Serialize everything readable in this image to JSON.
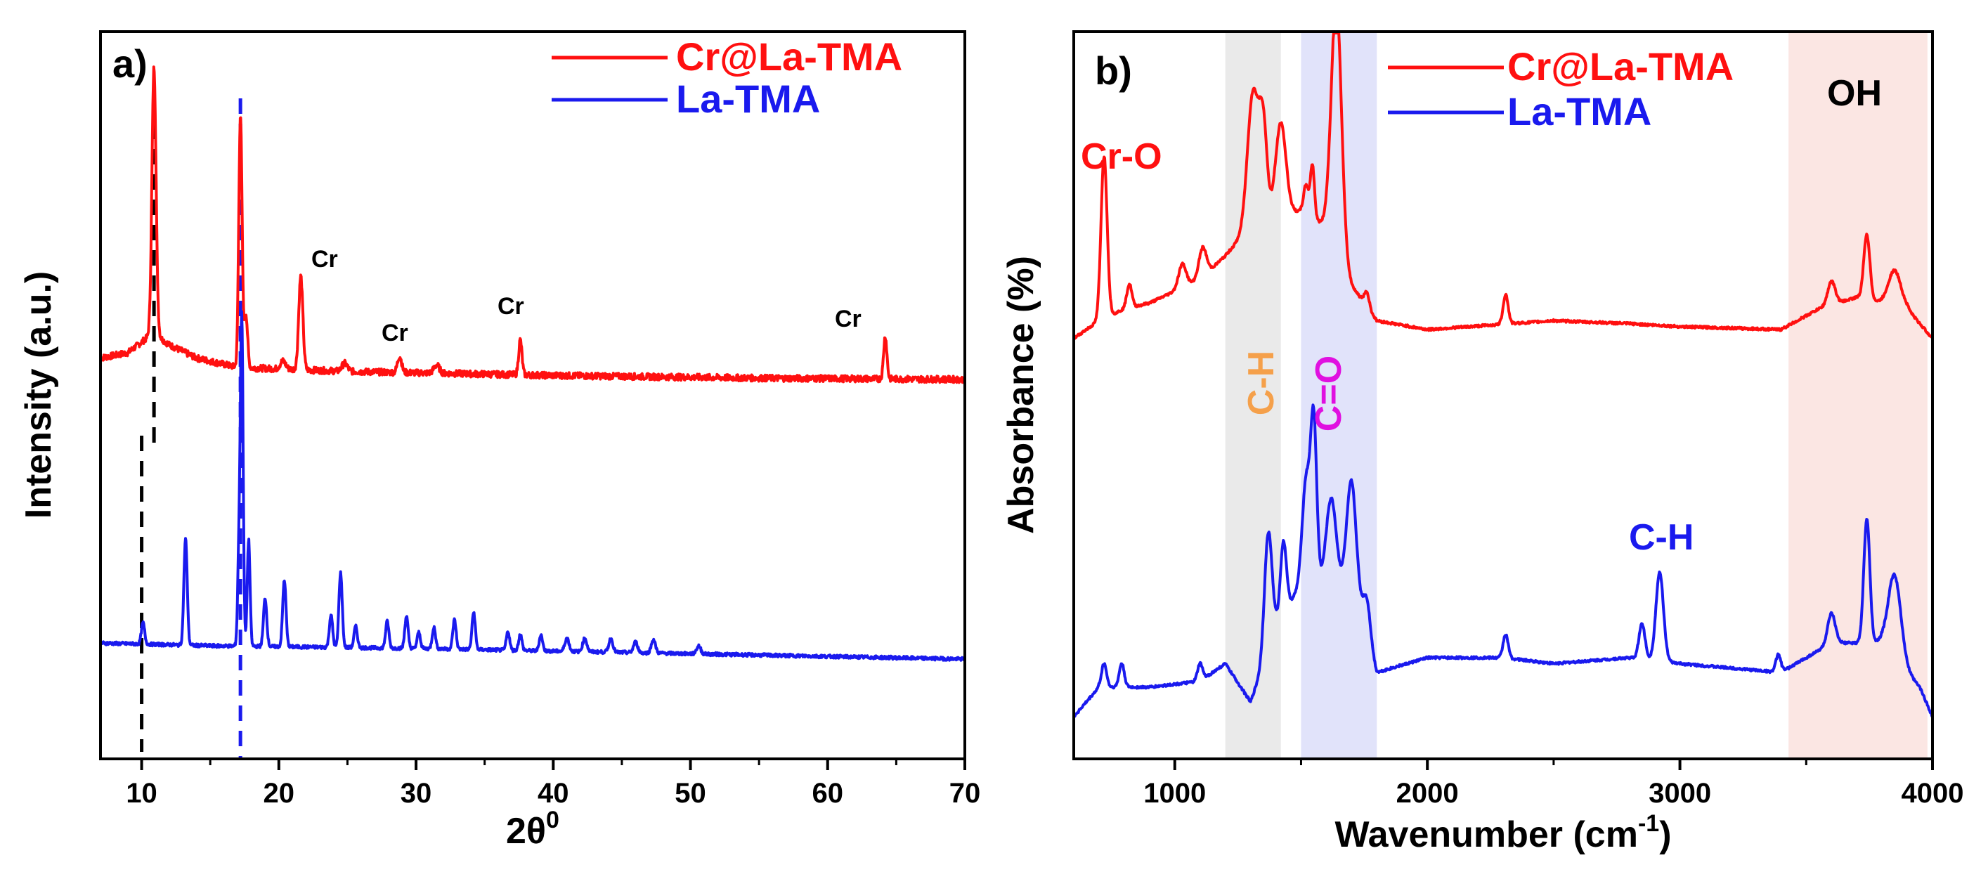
{
  "chart_data": [
    {
      "type": "line",
      "panel_label": "a)",
      "xlabel": "2θ",
      "xlabel_superscript": "0",
      "ylabel": "Intensity (a.u.)",
      "xlim": [
        7,
        70
      ],
      "xticks": [
        "10",
        "20",
        "30",
        "40",
        "50",
        "60",
        "70"
      ],
      "legend_position": "top-right",
      "series": [
        {
          "name": "Cr@La-TMA",
          "color": "#ff1010",
          "baseline_offset": 1.0,
          "background": [
            [
              7,
              0.08
            ],
            [
              9,
              0.1
            ],
            [
              10.5,
              0.16
            ],
            [
              11,
              0.17
            ],
            [
              12,
              0.13
            ],
            [
              14,
              0.08
            ],
            [
              17,
              0.045
            ],
            [
              25,
              0.03
            ],
            [
              40,
              0.015
            ],
            [
              55,
              0.005
            ],
            [
              70,
              0.0
            ]
          ],
          "peaks": [
            [
              10.9,
              1.0,
              0.15
            ],
            [
              17.2,
              0.95,
              0.12
            ],
            [
              17.6,
              0.2,
              0.12
            ],
            [
              21.6,
              0.35,
              0.15
            ],
            [
              28.8,
              0.06,
              0.15
            ],
            [
              37.6,
              0.13,
              0.12
            ],
            [
              64.2,
              0.16,
              0.12
            ],
            [
              20.3,
              0.03,
              0.2
            ],
            [
              24.8,
              0.03,
              0.2
            ],
            [
              31.5,
              0.03,
              0.2
            ]
          ]
        },
        {
          "name": "La-TMA",
          "color": "#1a1aee",
          "baseline_offset": 0.0,
          "background": [
            [
              7,
              0.06
            ],
            [
              15,
              0.05
            ],
            [
              30,
              0.04
            ],
            [
              50,
              0.02
            ],
            [
              70,
              0.0
            ]
          ],
          "peaks": [
            [
              10.1,
              0.08,
              0.12
            ],
            [
              13.2,
              0.4,
              0.12
            ],
            [
              17.1,
              0.35,
              0.1
            ],
            [
              17.3,
              1.2,
              0.1
            ],
            [
              17.8,
              0.4,
              0.1
            ],
            [
              19.0,
              0.18,
              0.12
            ],
            [
              20.4,
              0.25,
              0.12
            ],
            [
              23.8,
              0.12,
              0.12
            ],
            [
              24.5,
              0.28,
              0.12
            ],
            [
              25.6,
              0.08,
              0.12
            ],
            [
              27.9,
              0.1,
              0.12
            ],
            [
              29.3,
              0.12,
              0.12
            ],
            [
              30.2,
              0.06,
              0.12
            ],
            [
              31.3,
              0.08,
              0.12
            ],
            [
              32.8,
              0.11,
              0.12
            ],
            [
              34.2,
              0.14,
              0.12
            ],
            [
              36.7,
              0.07,
              0.12
            ],
            [
              37.6,
              0.06,
              0.12
            ],
            [
              39.1,
              0.06,
              0.12
            ],
            [
              41.0,
              0.05,
              0.15
            ],
            [
              42.3,
              0.05,
              0.15
            ],
            [
              44.2,
              0.05,
              0.15
            ],
            [
              46.0,
              0.04,
              0.15
            ],
            [
              47.3,
              0.05,
              0.15
            ],
            [
              50.6,
              0.03,
              0.15
            ]
          ]
        }
      ],
      "reference_lines": [
        {
          "x": 10.0,
          "color": "#000000"
        },
        {
          "x": 10.9,
          "color": "#000000"
        },
        {
          "x": 17.2,
          "color": "#1a1aee"
        }
      ],
      "annotations": [
        {
          "text": "Cr",
          "x": 21.6
        },
        {
          "text": "Cr",
          "x": 28.8
        },
        {
          "text": "Cr",
          "x": 37.6
        },
        {
          "text": "Cr",
          "x": 64.2
        }
      ]
    },
    {
      "type": "line",
      "panel_label": "b)",
      "xlabel": "Wavenumber (cm",
      "xlabel_superscript": "-1",
      "xlabel_suffix": ")",
      "ylabel": "Absorbance (%)",
      "xlim": [
        600,
        4000
      ],
      "xticks": [
        "1000",
        "2000",
        "3000",
        "4000"
      ],
      "legend_position": "top-center",
      "series": [
        {
          "name": "Cr@La-TMA",
          "color": "#ff1010",
          "baseline_offset": 1.0,
          "background": [
            [
              600,
              0.02
            ],
            [
              700,
              0.08
            ],
            [
              800,
              0.12
            ],
            [
              900,
              0.14
            ],
            [
              1000,
              0.18
            ],
            [
              1100,
              0.22
            ],
            [
              1200,
              0.3
            ],
            [
              1300,
              0.4
            ],
            [
              1400,
              0.45
            ],
            [
              1500,
              0.45
            ],
            [
              1600,
              0.4
            ],
            [
              1700,
              0.2
            ],
            [
              1800,
              0.08
            ],
            [
              2000,
              0.05
            ],
            [
              2500,
              0.08
            ],
            [
              2800,
              0.07
            ],
            [
              3000,
              0.06
            ],
            [
              3400,
              0.05
            ],
            [
              3550,
              0.12
            ],
            [
              3700,
              0.16
            ],
            [
              3900,
              0.12
            ],
            [
              4000,
              0.02
            ]
          ],
          "peaks": [
            [
              720,
              0.55,
              12
            ],
            [
              820,
              0.08,
              10
            ],
            [
              1030,
              0.08,
              15
            ],
            [
              1110,
              0.1,
              15
            ],
            [
              1310,
              0.45,
              22
            ],
            [
              1350,
              0.3,
              15
            ],
            [
              1420,
              0.3,
              20
            ],
            [
              1520,
              0.1,
              10
            ],
            [
              1545,
              0.18,
              8
            ],
            [
              1640,
              0.85,
              20
            ],
            [
              1760,
              0.05,
              10
            ],
            [
              2310,
              0.1,
              10
            ],
            [
              3600,
              0.08,
              15
            ],
            [
              3740,
              0.22,
              12
            ],
            [
              3850,
              0.12,
              25
            ]
          ]
        },
        {
          "name": "La-TMA",
          "color": "#1a1aee",
          "baseline_offset": 0.0,
          "background": [
            [
              600,
              0.0
            ],
            [
              700,
              0.1
            ],
            [
              900,
              0.1
            ],
            [
              1100,
              0.12
            ],
            [
              1200,
              0.18
            ],
            [
              1300,
              0.05
            ],
            [
              1400,
              0.3
            ],
            [
              1500,
              0.45
            ],
            [
              1600,
              0.45
            ],
            [
              1700,
              0.4
            ],
            [
              1800,
              0.15
            ],
            [
              2000,
              0.2
            ],
            [
              2300,
              0.2
            ],
            [
              2500,
              0.18
            ],
            [
              2800,
              0.2
            ],
            [
              3000,
              0.18
            ],
            [
              3400,
              0.15
            ],
            [
              3600,
              0.25
            ],
            [
              3800,
              0.25
            ],
            [
              3950,
              0.1
            ],
            [
              4000,
              0.0
            ]
          ],
          "peaks": [
            [
              720,
              0.08,
              10
            ],
            [
              790,
              0.08,
              10
            ],
            [
              1100,
              0.06,
              10
            ],
            [
              1370,
              0.4,
              15
            ],
            [
              1430,
              0.25,
              12
            ],
            [
              1520,
              0.35,
              15
            ],
            [
              1550,
              0.55,
              12
            ],
            [
              1620,
              0.3,
              20
            ],
            [
              1700,
              0.4,
              20
            ],
            [
              1760,
              0.15,
              15
            ],
            [
              2310,
              0.08,
              10
            ],
            [
              2850,
              0.12,
              12
            ],
            [
              2920,
              0.3,
              15
            ],
            [
              3390,
              0.06,
              10
            ],
            [
              3600,
              0.1,
              15
            ],
            [
              3740,
              0.42,
              12
            ],
            [
              3850,
              0.28,
              25
            ]
          ]
        }
      ],
      "shaded_regions": [
        {
          "x0": 1200,
          "x1": 1420,
          "color": "#d8d8d8"
        },
        {
          "x0": 1500,
          "x1": 1800,
          "color": "#c9ccf5"
        },
        {
          "x0": 3430,
          "x1": 3980,
          "color": "#f8d2cc"
        }
      ],
      "annotations": [
        {
          "text": "Cr-O",
          "color": "#ff1010"
        },
        {
          "text": "C-H",
          "color": "#f5a04a"
        },
        {
          "text": "C=O",
          "color": "#e010e0"
        },
        {
          "text": "C-H",
          "color": "#1a1aee"
        },
        {
          "text": "OH",
          "color": "#000000"
        }
      ]
    }
  ]
}
